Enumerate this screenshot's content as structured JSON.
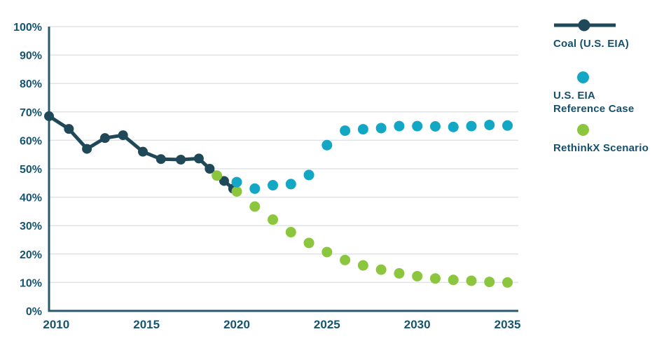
{
  "colors": {
    "navy_series": "#1f4858",
    "cyan_series": "#12a7c4",
    "green_series": "#8cc63e",
    "axis": "#2a586c",
    "tick_text": "#16546f",
    "legend_text": "#14506e",
    "gridline": "#dfe3e5",
    "background": "#ffffff"
  },
  "chart_data": {
    "type": "line",
    "title": "",
    "xlabel": "",
    "ylabel": "",
    "grid": true,
    "legend_position": "right",
    "x_axis": {
      "range": [
        2009.6,
        2035.6
      ],
      "ticks": [
        2010,
        2015,
        2020,
        2025,
        2030,
        2035
      ],
      "tick_labels": [
        "2010",
        "2015",
        "2020",
        "2025",
        "2030",
        "2035"
      ]
    },
    "y_axis": {
      "range": [
        0,
        100
      ],
      "unit": "%",
      "ticks": [
        0,
        10,
        20,
        30,
        40,
        50,
        60,
        70,
        80,
        90,
        100
      ],
      "tick_labels": [
        "0%",
        "10%",
        "20%",
        "30%",
        "40%",
        "50%",
        "60%",
        "70%",
        "80%",
        "90%",
        "100%"
      ]
    },
    "series": [
      {
        "name": "Coal (U.S. EIA)",
        "style": "line+markers",
        "color": "#1f4858",
        "x": [
          2009.6,
          2010.7,
          2011.7,
          2012.7,
          2013.7,
          2014.8,
          2015.8,
          2016.9,
          2017.9,
          2018.5,
          2019.3,
          2019.8
        ],
        "values": [
          68.5,
          64,
          57,
          60.8,
          61.8,
          56,
          53.4,
          53.2,
          53.6,
          50,
          45.7,
          43
        ]
      },
      {
        "name": "U.S. EIA Reference Case",
        "style": "markers",
        "color": "#12a7c4",
        "x": [
          2020,
          2021,
          2022,
          2023,
          2024,
          2025,
          2026,
          2027,
          2028,
          2029,
          2030,
          2031,
          2032,
          2033,
          2034,
          2035
        ],
        "values": [
          45.3,
          43,
          44.2,
          44.6,
          47.8,
          58.3,
          63.4,
          63.9,
          64.3,
          65,
          65,
          64.9,
          64.7,
          65,
          65.4,
          65.2
        ]
      },
      {
        "name": "RethinkX Scenario",
        "style": "markers",
        "color": "#8cc63e",
        "x": [
          2018.9,
          2020,
          2021,
          2022,
          2023,
          2024,
          2025,
          2026,
          2027,
          2028,
          2029,
          2030,
          2031,
          2032,
          2033,
          2034,
          2035
        ],
        "values": [
          47.6,
          42,
          36.7,
          32.1,
          27.7,
          23.9,
          20.7,
          17.9,
          16,
          14.5,
          13.2,
          12.2,
          11.4,
          10.9,
          10.6,
          10.2,
          10
        ]
      }
    ]
  },
  "legend": {
    "items": [
      {
        "lines": [
          "Coal (U.S. EIA)"
        ]
      },
      {
        "lines": [
          "U.S. EIA",
          "Reference Case"
        ]
      },
      {
        "lines": [
          "RethinkX Scenario"
        ]
      }
    ]
  }
}
